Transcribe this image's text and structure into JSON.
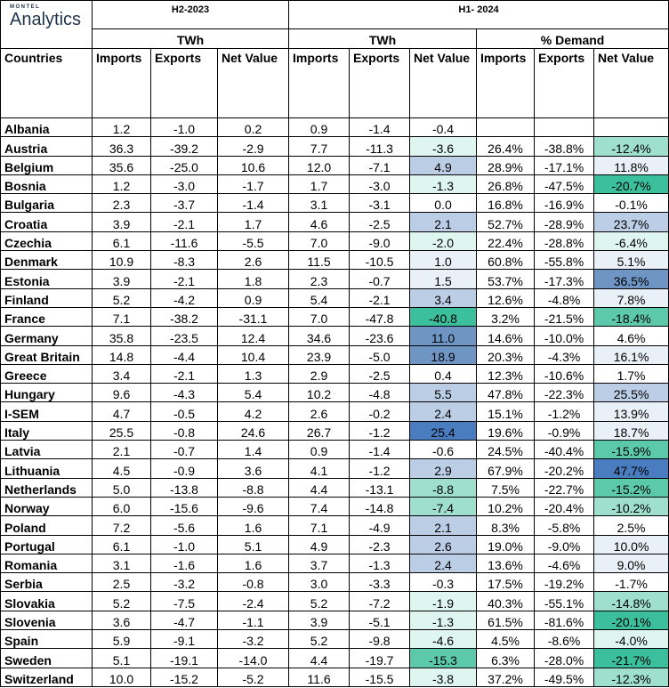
{
  "logo": {
    "small": "MONTEL",
    "big": "Analytics"
  },
  "periods": {
    "h2_2023": "H2-2023",
    "h1_2024": "H1- 2024"
  },
  "units": {
    "twh_2023": "TWh",
    "twh_2024": "TWh",
    "pct_demand": "% Demand"
  },
  "headers": [
    "Countries",
    "Imports",
    "Exports",
    "Net Value",
    "Imports",
    "Exports",
    "Net Value",
    "Imports",
    "Exports",
    "Net Value"
  ],
  "colors": {
    "heat_low": "#eaf0f8",
    "heat_mid": "#bccde6",
    "heat_high": "#6f95c4",
    "heat_max": "#4a7cc0",
    "teal_light": "#dff5ef",
    "teal_mid": "#9edfcd",
    "teal_strong": "#5ccaaa",
    "teal_max": "#3bbf9c"
  },
  "rows": [
    {
      "country": "Albania",
      "h2_imp": "1.2",
      "h2_exp": "-1.0",
      "h2_net": "0.2",
      "h1_imp": "0.9",
      "h1_exp": "-1.4",
      "h1_net": "-0.4",
      "pd_imp": "",
      "pd_exp": "",
      "pd_net": ""
    },
    {
      "country": "Austria",
      "h2_imp": "36.3",
      "h2_exp": "-39.2",
      "h2_net": "-2.9",
      "h1_imp": "7.7",
      "h1_exp": "-11.3",
      "h1_net": "-3.6",
      "pd_imp": "26.4%",
      "pd_exp": "-38.8%",
      "pd_net": "-12.4%"
    },
    {
      "country": "Belgium",
      "h2_imp": "35.6",
      "h2_exp": "-25.0",
      "h2_net": "10.6",
      "h1_imp": "12.0",
      "h1_exp": "-7.1",
      "h1_net": "4.9",
      "pd_imp": "28.9%",
      "pd_exp": "-17.1%",
      "pd_net": "11.8%"
    },
    {
      "country": "Bosnia",
      "h2_imp": "1.2",
      "h2_exp": "-3.0",
      "h2_net": "-1.7",
      "h1_imp": "1.7",
      "h1_exp": "-3.0",
      "h1_net": "-1.3",
      "pd_imp": "26.8%",
      "pd_exp": "-47.5%",
      "pd_net": "-20.7%"
    },
    {
      "country": "Bulgaria",
      "h2_imp": "2.3",
      "h2_exp": "-3.7",
      "h2_net": "-1.4",
      "h1_imp": "3.1",
      "h1_exp": "-3.1",
      "h1_net": "0.0",
      "pd_imp": "16.8%",
      "pd_exp": "-16.9%",
      "pd_net": "-0.1%"
    },
    {
      "country": "Croatia",
      "h2_imp": "3.9",
      "h2_exp": "-2.1",
      "h2_net": "1.7",
      "h1_imp": "4.6",
      "h1_exp": "-2.5",
      "h1_net": "2.1",
      "pd_imp": "52.7%",
      "pd_exp": "-28.9%",
      "pd_net": "23.7%"
    },
    {
      "country": "Czechia",
      "h2_imp": "6.1",
      "h2_exp": "-11.6",
      "h2_net": "-5.5",
      "h1_imp": "7.0",
      "h1_exp": "-9.0",
      "h1_net": "-2.0",
      "pd_imp": "22.4%",
      "pd_exp": "-28.8%",
      "pd_net": "-6.4%"
    },
    {
      "country": "Denmark",
      "h2_imp": "10.9",
      "h2_exp": "-8.3",
      "h2_net": "2.6",
      "h1_imp": "11.5",
      "h1_exp": "-10.5",
      "h1_net": "1.0",
      "pd_imp": "60.8%",
      "pd_exp": "-55.8%",
      "pd_net": "5.1%"
    },
    {
      "country": "Estonia",
      "h2_imp": "3.9",
      "h2_exp": "-2.1",
      "h2_net": "1.8",
      "h1_imp": "2.3",
      "h1_exp": "-0.7",
      "h1_net": "1.5",
      "pd_imp": "53.7%",
      "pd_exp": "-17.3%",
      "pd_net": "36.5%"
    },
    {
      "country": "Finland",
      "h2_imp": "5.2",
      "h2_exp": "-4.2",
      "h2_net": "0.9",
      "h1_imp": "5.4",
      "h1_exp": "-2.1",
      "h1_net": "3.4",
      "pd_imp": "12.6%",
      "pd_exp": "-4.8%",
      "pd_net": "7.8%"
    },
    {
      "country": "France",
      "h2_imp": "7.1",
      "h2_exp": "-38.2",
      "h2_net": "-31.1",
      "h1_imp": "7.0",
      "h1_exp": "-47.8",
      "h1_net": "-40.8",
      "pd_imp": "3.2%",
      "pd_exp": "-21.5%",
      "pd_net": "-18.4%"
    },
    {
      "country": "Germany",
      "h2_imp": "35.8",
      "h2_exp": "-23.5",
      "h2_net": "12.4",
      "h1_imp": "34.6",
      "h1_exp": "-23.6",
      "h1_net": "11.0",
      "pd_imp": "14.6%",
      "pd_exp": "-10.0%",
      "pd_net": "4.6%"
    },
    {
      "country": "Great Britain",
      "h2_imp": "14.8",
      "h2_exp": "-4.4",
      "h2_net": "10.4",
      "h1_imp": "23.9",
      "h1_exp": "-5.0",
      "h1_net": "18.9",
      "pd_imp": "20.3%",
      "pd_exp": "-4.3%",
      "pd_net": "16.1%"
    },
    {
      "country": "Greece",
      "h2_imp": "3.4",
      "h2_exp": "-2.1",
      "h2_net": "1.3",
      "h1_imp": "2.9",
      "h1_exp": "-2.5",
      "h1_net": "0.4",
      "pd_imp": "12.3%",
      "pd_exp": "-10.6%",
      "pd_net": "1.7%"
    },
    {
      "country": "Hungary",
      "h2_imp": "9.6",
      "h2_exp": "-4.3",
      "h2_net": "5.4",
      "h1_imp": "10.2",
      "h1_exp": "-4.8",
      "h1_net": "5.5",
      "pd_imp": "47.8%",
      "pd_exp": "-22.3%",
      "pd_net": "25.5%"
    },
    {
      "country": "I-SEM",
      "h2_imp": "4.7",
      "h2_exp": "-0.5",
      "h2_net": "4.2",
      "h1_imp": "2.6",
      "h1_exp": "-0.2",
      "h1_net": "2.4",
      "pd_imp": "15.1%",
      "pd_exp": "-1.2%",
      "pd_net": "13.9%"
    },
    {
      "country": "Italy",
      "h2_imp": "25.5",
      "h2_exp": "-0.8",
      "h2_net": "24.6",
      "h1_imp": "26.7",
      "h1_exp": "-1.2",
      "h1_net": "25.4",
      "pd_imp": "19.6%",
      "pd_exp": "-0.9%",
      "pd_net": "18.7%"
    },
    {
      "country": "Latvia",
      "h2_imp": "2.1",
      "h2_exp": "-0.7",
      "h2_net": "1.4",
      "h1_imp": "0.9",
      "h1_exp": "-1.4",
      "h1_net": "-0.6",
      "pd_imp": "24.5%",
      "pd_exp": "-40.4%",
      "pd_net": "-15.9%"
    },
    {
      "country": "Lithuania",
      "h2_imp": "4.5",
      "h2_exp": "-0.9",
      "h2_net": "3.6",
      "h1_imp": "4.1",
      "h1_exp": "-1.2",
      "h1_net": "2.9",
      "pd_imp": "67.9%",
      "pd_exp": "-20.2%",
      "pd_net": "47.7%"
    },
    {
      "country": "Netherlands",
      "h2_imp": "5.0",
      "h2_exp": "-13.8",
      "h2_net": "-8.8",
      "h1_imp": "4.4",
      "h1_exp": "-13.1",
      "h1_net": "-8.8",
      "pd_imp": "7.5%",
      "pd_exp": "-22.7%",
      "pd_net": "-15.2%"
    },
    {
      "country": "Norway",
      "h2_imp": "6.0",
      "h2_exp": "-15.6",
      "h2_net": "-9.6",
      "h1_imp": "7.4",
      "h1_exp": "-14.8",
      "h1_net": "-7.4",
      "pd_imp": "10.2%",
      "pd_exp": "-20.4%",
      "pd_net": "-10.2%"
    },
    {
      "country": "Poland",
      "h2_imp": "7.2",
      "h2_exp": "-5.6",
      "h2_net": "1.6",
      "h1_imp": "7.1",
      "h1_exp": "-4.9",
      "h1_net": "2.1",
      "pd_imp": "8.3%",
      "pd_exp": "-5.8%",
      "pd_net": "2.5%"
    },
    {
      "country": "Portugal",
      "h2_imp": "6.1",
      "h2_exp": "-1.0",
      "h2_net": "5.1",
      "h1_imp": "4.9",
      "h1_exp": "-2.3",
      "h1_net": "2.6",
      "pd_imp": "19.0%",
      "pd_exp": "-9.0%",
      "pd_net": "10.0%"
    },
    {
      "country": "Romania",
      "h2_imp": "3.1",
      "h2_exp": "-1.6",
      "h2_net": "1.6",
      "h1_imp": "3.7",
      "h1_exp": "-1.3",
      "h1_net": "2.4",
      "pd_imp": "13.6%",
      "pd_exp": "-4.6%",
      "pd_net": "9.0%"
    },
    {
      "country": "Serbia",
      "h2_imp": "2.5",
      "h2_exp": "-3.2",
      "h2_net": "-0.8",
      "h1_imp": "3.0",
      "h1_exp": "-3.3",
      "h1_net": "-0.3",
      "pd_imp": "17.5%",
      "pd_exp": "-19.2%",
      "pd_net": "-1.7%"
    },
    {
      "country": "Slovakia",
      "h2_imp": "5.2",
      "h2_exp": "-7.5",
      "h2_net": "-2.4",
      "h1_imp": "5.2",
      "h1_exp": "-7.2",
      "h1_net": "-1.9",
      "pd_imp": "40.3%",
      "pd_exp": "-55.1%",
      "pd_net": "-14.8%"
    },
    {
      "country": "Slovenia",
      "h2_imp": "3.6",
      "h2_exp": "-4.7",
      "h2_net": "-1.1",
      "h1_imp": "3.9",
      "h1_exp": "-5.1",
      "h1_net": "-1.3",
      "pd_imp": "61.5%",
      "pd_exp": "-81.6%",
      "pd_net": "-20.1%"
    },
    {
      "country": "Spain",
      "h2_imp": "5.9",
      "h2_exp": "-9.1",
      "h2_net": "-3.2",
      "h1_imp": "5.2",
      "h1_exp": "-9.8",
      "h1_net": "-4.6",
      "pd_imp": "4.5%",
      "pd_exp": "-8.6%",
      "pd_net": "-4.0%"
    },
    {
      "country": "Sweden",
      "h2_imp": "5.1",
      "h2_exp": "-19.1",
      "h2_net": "-14.0",
      "h1_imp": "4.4",
      "h1_exp": "-19.7",
      "h1_net": "-15.3",
      "pd_imp": "6.3%",
      "pd_exp": "-28.0%",
      "pd_net": "-21.7%"
    },
    {
      "country": "Switzerland",
      "h2_imp": "10.0",
      "h2_exp": "-15.2",
      "h2_net": "-5.2",
      "h1_imp": "11.6",
      "h1_exp": "-15.5",
      "h1_net": "-3.8",
      "pd_imp": "37.2%",
      "pd_exp": "-49.5%",
      "pd_net": "-12.3%"
    }
  ]
}
